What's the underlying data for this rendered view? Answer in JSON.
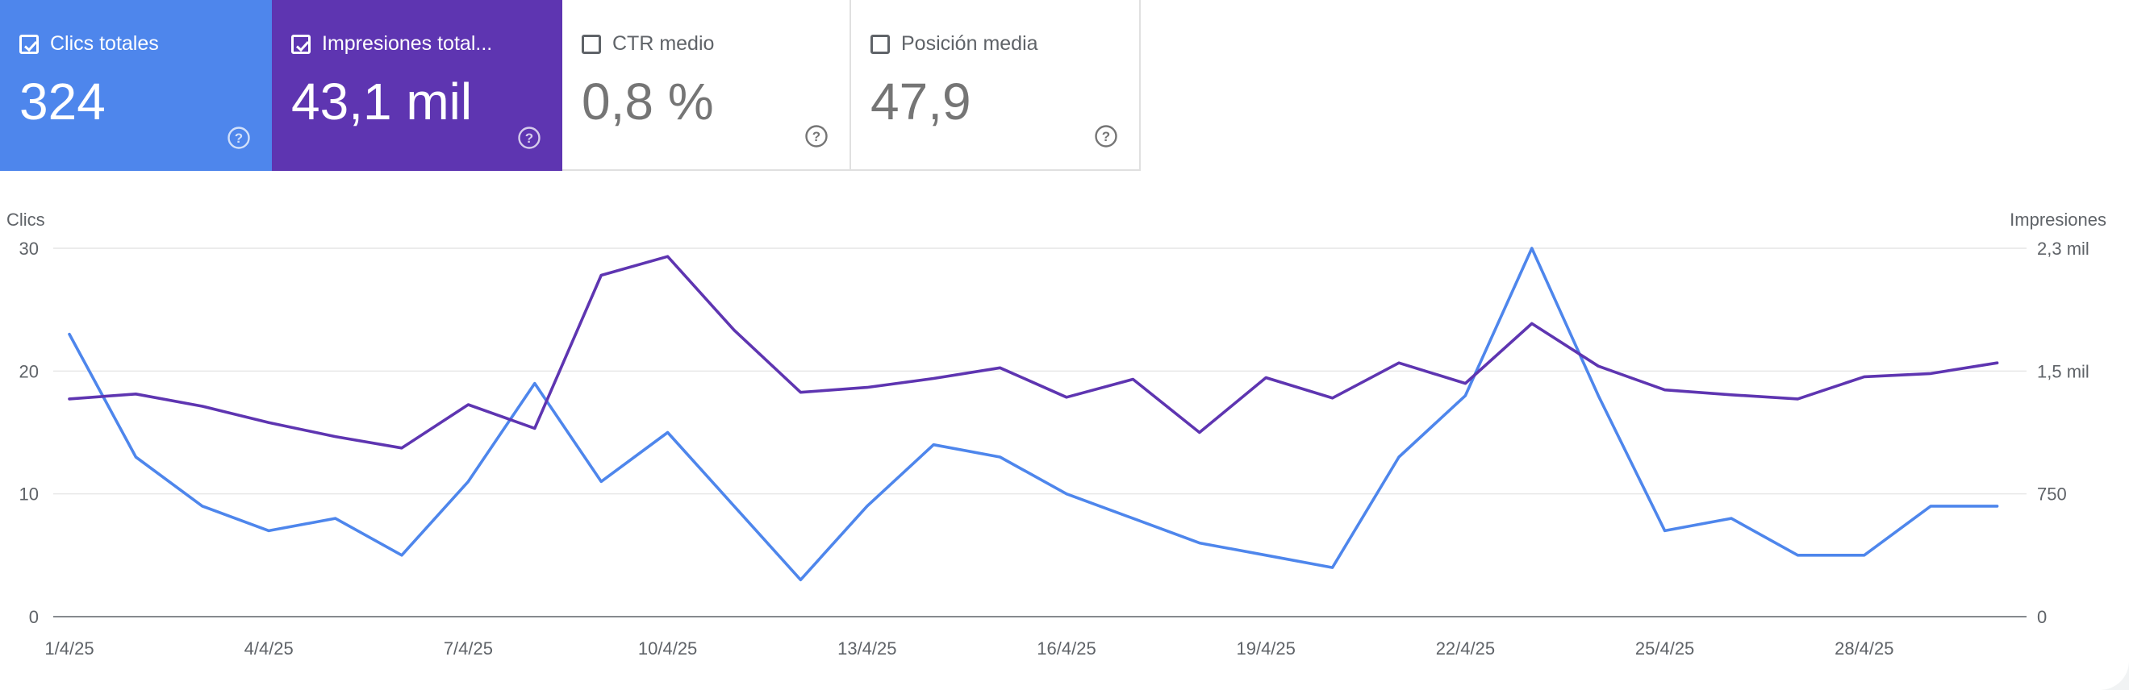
{
  "cards": [
    {
      "label": "Clics totales",
      "value": "324",
      "checked": true,
      "color": "#4e86ec"
    },
    {
      "label": "Impresiones total...",
      "value": "43,1 mil",
      "checked": true,
      "color": "#5e35b1"
    },
    {
      "label": "CTR medio",
      "value": "0,8 %",
      "checked": false,
      "color": "#ffffff"
    },
    {
      "label": "Posición media",
      "value": "47,9",
      "checked": false,
      "color": "#ffffff"
    }
  ],
  "chart_data": {
    "type": "line",
    "left_axis": {
      "title": "Clics",
      "ticks": [
        0,
        10,
        20,
        30
      ],
      "tick_labels": [
        "0",
        "10",
        "20",
        "30"
      ],
      "ylim": [
        0,
        30
      ]
    },
    "right_axis": {
      "title": "Impresiones",
      "ticks": [
        0,
        750,
        1500,
        2250
      ],
      "tick_labels": [
        "0",
        "750",
        "1,5 mil",
        "2,3 mil"
      ],
      "ylim": [
        0,
        2250
      ]
    },
    "x_labels": [
      "1/4/25",
      "4/4/25",
      "7/4/25",
      "10/4/25",
      "13/4/25",
      "16/4/25",
      "19/4/25",
      "22/4/25",
      "25/4/25",
      "28/4/25"
    ],
    "x": [
      "1/4/25",
      "2/4/25",
      "3/4/25",
      "4/4/25",
      "5/4/25",
      "6/4/25",
      "7/4/25",
      "8/4/25",
      "9/4/25",
      "10/4/25",
      "11/4/25",
      "12/4/25",
      "13/4/25",
      "14/4/25",
      "15/4/25",
      "16/4/25",
      "17/4/25",
      "18/4/25",
      "19/4/25",
      "20/4/25",
      "21/4/25",
      "22/4/25",
      "23/4/25",
      "24/4/25",
      "25/4/25",
      "26/4/25",
      "27/4/25",
      "28/4/25",
      "29/4/25",
      "30/4/25"
    ],
    "series": [
      {
        "name": "Clics totales",
        "axis": "left",
        "color": "#4e86ec",
        "values": [
          23,
          13,
          9,
          7,
          8,
          5,
          11,
          19,
          11,
          15,
          9,
          3,
          9,
          14,
          13,
          10,
          8,
          6,
          5,
          4,
          13,
          18,
          30,
          18,
          7,
          8,
          5,
          5,
          9,
          9
        ]
      },
      {
        "name": "Impresiones totales",
        "axis": "right",
        "color": "#5e35b1",
        "values": [
          1330,
          1360,
          1285,
          1185,
          1100,
          1030,
          1295,
          1150,
          2085,
          2200,
          1750,
          1370,
          1400,
          1455,
          1520,
          1340,
          1450,
          1125,
          1460,
          1335,
          1550,
          1425,
          1790,
          1530,
          1385,
          1355,
          1330,
          1465,
          1485,
          1550
        ]
      }
    ],
    "grid": true
  }
}
